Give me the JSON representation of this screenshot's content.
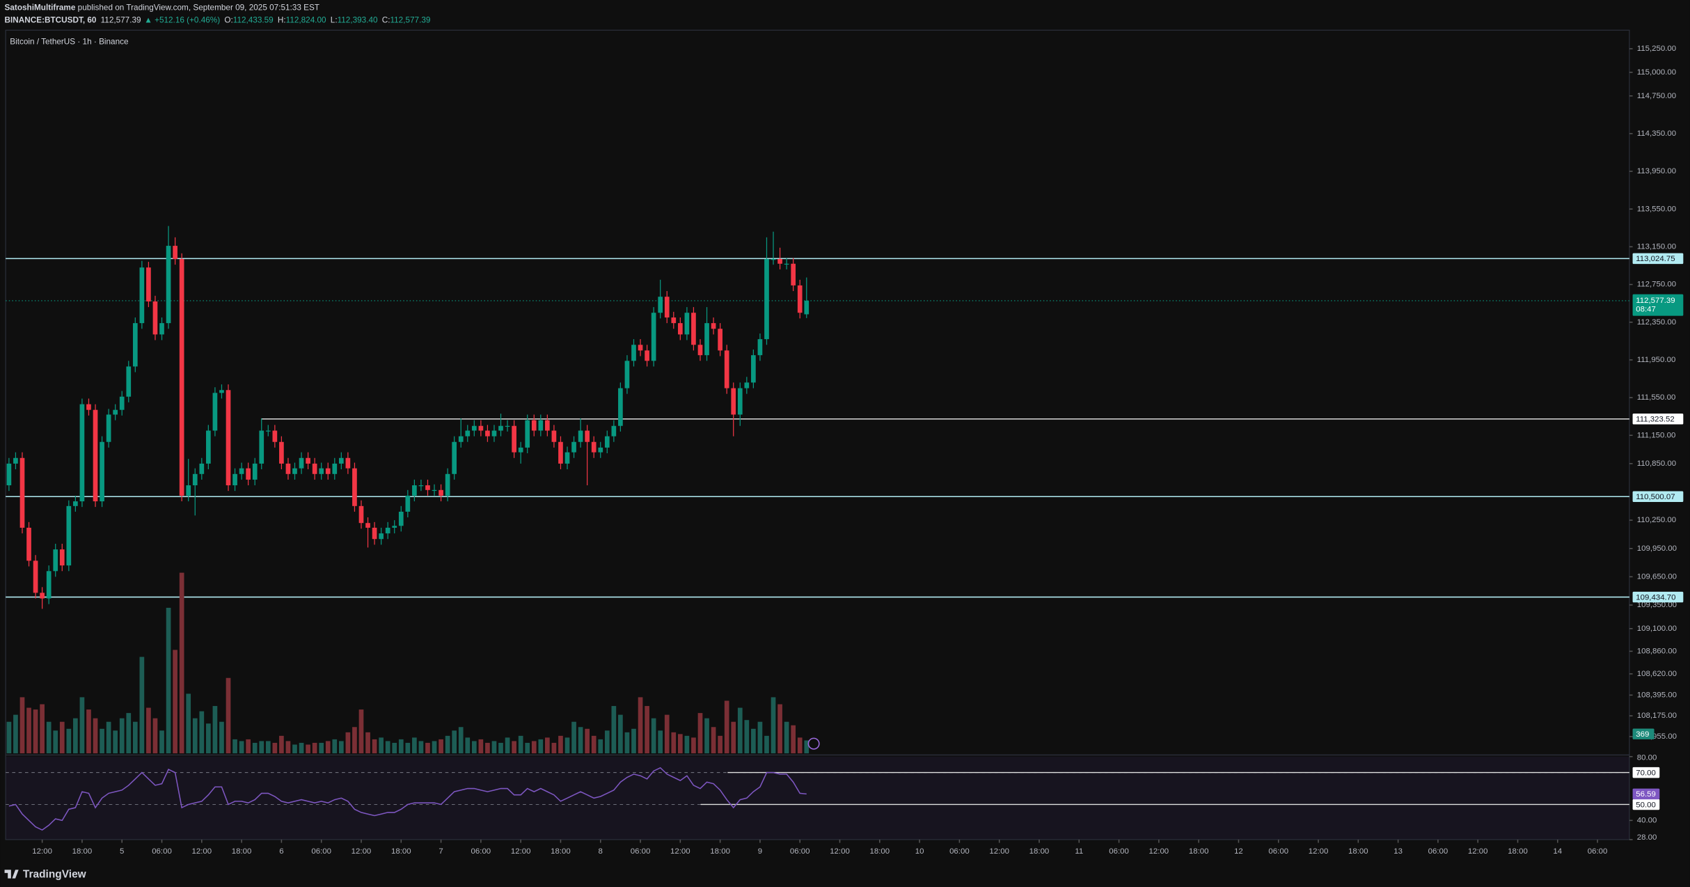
{
  "header": {
    "publisher": "SatoshiMultiframe",
    "published": " published on TradingView.com, September 09, 2025 07:51:33 EST",
    "symbol": "BINANCE:BTCUSDT, 60",
    "last": "112,577.39",
    "change": "▲ +512.16 (+0.46%)",
    "ohlc": [
      {
        "key": "O:",
        "value": "112,433.59"
      },
      {
        "key": "H:",
        "value": "112,824.00"
      },
      {
        "key": "L:",
        "value": "112,393.40"
      },
      {
        "key": "C:",
        "value": "112,577.39"
      }
    ]
  },
  "footer": "TradingView",
  "chart_data": {
    "type": "candlestick",
    "title": "Bitcoin / TetherUS · 1h · Binance",
    "colors": {
      "up": "#089981",
      "down": "#f23645",
      "up_volume": "#1d5d55",
      "down_volume": "#7b2f35"
    },
    "open": [
      110620,
      110850,
      110910,
      110170,
      109820,
      109480,
      109420,
      109710,
      109940,
      109770,
      110400,
      110450,
      111480,
      111420,
      110450,
      111080,
      111370,
      111420,
      111560,
      111880,
      112340,
      112930,
      112570,
      112220,
      112340,
      113160,
      113020,
      110510,
      110620,
      110740,
      110850,
      111200,
      111600,
      111630,
      110620,
      110740,
      110800,
      110680,
      110850,
      111200,
      111200,
      111080,
      110850,
      110740,
      110800,
      110910,
      110850,
      110740,
      110800,
      110740,
      110850,
      110910,
      110800,
      110400,
      110220,
      110170,
      110050,
      110110,
      110170,
      110190,
      110340,
      110510,
      110620,
      110620,
      110570,
      110570,
      110510,
      110740,
      111080,
      111140,
      111200,
      111250,
      111200,
      111140,
      111200,
      111250,
      111250,
      110970,
      111020,
      111310,
      111200,
      111310,
      111200,
      111080,
      110850,
      110970,
      111080,
      111200,
      111080,
      110970,
      111020,
      111140,
      111250,
      111650,
      111940,
      112110,
      112050,
      111940,
      112450,
      112620,
      112400,
      112340,
      112220,
      112450,
      112110,
      112000,
      112340,
      112280,
      112050,
      111650,
      111370,
      111650,
      111710,
      112000,
      112170,
      113020,
      113020,
      112970,
      112970,
      112740,
      112433.59
    ],
    "high": [
      110910,
      110970,
      110970,
      110230,
      109880,
      109540,
      109770,
      110000,
      110000,
      110460,
      110510,
      111540,
      111540,
      111480,
      111140,
      111430,
      111480,
      111620,
      111940,
      112400,
      113000,
      112990,
      112630,
      112400,
      113370,
      113250,
      113080,
      110900,
      110800,
      110910,
      111260,
      111660,
      111690,
      111690,
      110800,
      110860,
      110860,
      110910,
      111330,
      111260,
      111260,
      111140,
      110910,
      110860,
      110970,
      110970,
      110910,
      110860,
      110860,
      110910,
      110970,
      110970,
      110860,
      110460,
      110280,
      110230,
      110170,
      110230,
      110250,
      110400,
      110570,
      110680,
      110680,
      110680,
      110630,
      110630,
      110800,
      111140,
      111330,
      111260,
      111310,
      111310,
      111260,
      111260,
      111380,
      111310,
      111310,
      111080,
      111370,
      111370,
      111370,
      111370,
      111260,
      111140,
      111030,
      111140,
      111330,
      111260,
      111140,
      111080,
      111200,
      111310,
      111710,
      112000,
      112170,
      112170,
      112110,
      112510,
      112800,
      112680,
      112460,
      112400,
      112510,
      112510,
      112170,
      112510,
      112400,
      112340,
      112110,
      111710,
      111710,
      111770,
      112060,
      112230,
      113250,
      113310,
      113140,
      113030,
      113030,
      112800,
      112824
    ],
    "low": [
      110560,
      110790,
      110110,
      109760,
      109420,
      109310,
      109360,
      109650,
      109710,
      109710,
      110340,
      110390,
      111360,
      110390,
      110390,
      111020,
      111310,
      111360,
      111500,
      111820,
      112280,
      112510,
      112160,
      112160,
      112280,
      112960,
      110450,
      110450,
      110300,
      110680,
      110790,
      111140,
      111540,
      110560,
      110560,
      110680,
      110620,
      110620,
      110790,
      111140,
      111020,
      110790,
      110680,
      110680,
      110740,
      110790,
      110680,
      110680,
      110680,
      110680,
      110790,
      110740,
      110340,
      110160,
      109960,
      109990,
      109990,
      110050,
      110110,
      110130,
      110280,
      110450,
      110560,
      110510,
      110510,
      110450,
      110450,
      110680,
      111020,
      111080,
      111140,
      111140,
      111080,
      111080,
      111140,
      111190,
      110910,
      110850,
      110960,
      111140,
      111140,
      111140,
      111020,
      110790,
      110790,
      110910,
      111020,
      110620,
      110910,
      110910,
      110960,
      111080,
      111190,
      111590,
      111880,
      111990,
      111880,
      111880,
      112390,
      112340,
      112280,
      112160,
      112160,
      112050,
      111940,
      111940,
      112220,
      111990,
      111590,
      111140,
      111250,
      111590,
      111650,
      111940,
      112110,
      112960,
      112910,
      112910,
      112680,
      112390,
      112393.4
    ],
    "close": [
      110850,
      110910,
      110170,
      109820,
      109480,
      109420,
      109710,
      109940,
      109770,
      110400,
      110450,
      111480,
      111420,
      110450,
      111080,
      111370,
      111420,
      111560,
      111880,
      112340,
      112930,
      112570,
      112220,
      112340,
      113160,
      113020,
      110510,
      110620,
      110740,
      110850,
      111200,
      111600,
      111630,
      110620,
      110740,
      110800,
      110680,
      110850,
      111200,
      111200,
      111080,
      110850,
      110740,
      110800,
      110910,
      110850,
      110740,
      110800,
      110740,
      110850,
      110910,
      110800,
      110400,
      110220,
      110170,
      110050,
      110110,
      110170,
      110190,
      110340,
      110510,
      110620,
      110620,
      110570,
      110570,
      110510,
      110740,
      111080,
      111140,
      111200,
      111250,
      111200,
      111140,
      111200,
      111250,
      111250,
      110970,
      111020,
      111310,
      111200,
      111310,
      111200,
      111080,
      110850,
      110970,
      111080,
      111200,
      111080,
      110970,
      111020,
      111140,
      111250,
      111650,
      111940,
      112110,
      112050,
      111940,
      112450,
      112620,
      112400,
      112340,
      112220,
      112450,
      112110,
      112000,
      112340,
      112280,
      112050,
      111650,
      111370,
      111650,
      111710,
      112000,
      112170,
      113020,
      113020,
      112970,
      112970,
      112740,
      112450,
      112577.39
    ],
    "volume": [
      900,
      1100,
      1600,
      1300,
      1250,
      1400,
      900,
      650,
      900,
      700,
      1000,
      1600,
      1250,
      1000,
      700,
      900,
      650,
      1000,
      1150,
      900,
      2750,
      1300,
      1000,
      650,
      4150,
      2950,
      5150,
      1700,
      1000,
      1200,
      850,
      1350,
      900,
      2150,
      400,
      350,
      400,
      300,
      350,
      350,
      300,
      500,
      350,
      250,
      300,
      250,
      300,
      300,
      350,
      400,
      350,
      600,
      750,
      1250,
      600,
      400,
      450,
      350,
      300,
      400,
      300,
      450,
      350,
      300,
      350,
      400,
      500,
      650,
      750,
      450,
      350,
      400,
      300,
      350,
      300,
      450,
      350,
      500,
      300,
      350,
      400,
      450,
      300,
      500,
      450,
      900,
      750,
      700,
      500,
      400,
      650,
      1350,
      1100,
      600,
      700,
      1600,
      1350,
      1000,
      650,
      1100,
      600,
      550,
      500,
      450,
      1150,
      1000,
      750,
      500,
      1500,
      900,
      1300,
      950,
      700,
      900,
      500,
      1600,
      1400,
      900,
      800,
      450,
      369
    ],
    "volume_lim": [
      0,
      5500
    ],
    "ylim": [
      107777,
      115447
    ],
    "yticks": [
      {
        "value": 115250,
        "label": "115,250.00"
      },
      {
        "value": 115000,
        "label": "115,000.00"
      },
      {
        "value": 114750,
        "label": "114,750.00"
      },
      {
        "value": 114350,
        "label": "114,350.00"
      },
      {
        "value": 113950,
        "label": "113,950.00"
      },
      {
        "value": 113550,
        "label": "113,550.00"
      },
      {
        "value": 113150,
        "label": "113,150.00"
      },
      {
        "value": 112750,
        "label": "112,750.00"
      },
      {
        "value": 112350,
        "label": "112,350.00"
      },
      {
        "value": 111950,
        "label": "111,950.00"
      },
      {
        "value": 111550,
        "label": "111,550.00"
      },
      {
        "value": 111150,
        "label": "111,150.00"
      },
      {
        "value": 110850,
        "label": "110,850.00"
      },
      {
        "value": 110250,
        "label": "110,250.00"
      },
      {
        "value": 109950,
        "label": "109,950.00"
      },
      {
        "value": 109650,
        "label": "109,650.00"
      },
      {
        "value": 109350,
        "label": "109,350.00"
      },
      {
        "value": 109100,
        "label": "109,100.00"
      },
      {
        "value": 108860,
        "label": "108,860.00"
      },
      {
        "value": 108620,
        "label": "108,620.00"
      },
      {
        "value": 108395,
        "label": "108,395.00"
      },
      {
        "value": 108175,
        "label": "108,175.00"
      },
      {
        "value": 107955,
        "label": "107,955.00"
      }
    ],
    "xlim": [
      -0.5,
      243.8
    ],
    "xticks": [
      {
        "value": 5,
        "label": "12:00"
      },
      {
        "value": 11,
        "label": "18:00"
      },
      {
        "value": 17,
        "label": "5"
      },
      {
        "value": 23,
        "label": "06:00"
      },
      {
        "value": 29,
        "label": "12:00"
      },
      {
        "value": 35,
        "label": "18:00"
      },
      {
        "value": 41,
        "label": "6"
      },
      {
        "value": 47,
        "label": "06:00"
      },
      {
        "value": 53,
        "label": "12:00"
      },
      {
        "value": 59,
        "label": "18:00"
      },
      {
        "value": 65,
        "label": "7"
      },
      {
        "value": 71,
        "label": "06:00"
      },
      {
        "value": 77,
        "label": "12:00"
      },
      {
        "value": 83,
        "label": "18:00"
      },
      {
        "value": 89,
        "label": "8"
      },
      {
        "value": 95,
        "label": "06:00"
      },
      {
        "value": 101,
        "label": "12:00"
      },
      {
        "value": 107,
        "label": "18:00"
      },
      {
        "value": 113,
        "label": "9"
      },
      {
        "value": 119,
        "label": "06:00"
      },
      {
        "value": 125,
        "label": "12:00"
      },
      {
        "value": 131,
        "label": "18:00"
      },
      {
        "value": 137,
        "label": "10"
      },
      {
        "value": 143,
        "label": "06:00"
      },
      {
        "value": 149,
        "label": "12:00"
      },
      {
        "value": 155,
        "label": "18:00"
      },
      {
        "value": 161,
        "label": "11"
      },
      {
        "value": 167,
        "label": "06:00"
      },
      {
        "value": 173,
        "label": "12:00"
      },
      {
        "value": 179,
        "label": "18:00"
      },
      {
        "value": 185,
        "label": "12"
      },
      {
        "value": 191,
        "label": "06:00"
      },
      {
        "value": 197,
        "label": "12:00"
      },
      {
        "value": 203,
        "label": "18:00"
      },
      {
        "value": 209,
        "label": "13"
      },
      {
        "value": 215,
        "label": "06:00"
      },
      {
        "value": 221,
        "label": "12:00"
      },
      {
        "value": 227,
        "label": "18:00"
      },
      {
        "value": 233,
        "label": "14"
      },
      {
        "value": 239,
        "label": "06:00"
      }
    ],
    "levels": [
      {
        "value": 113024.75,
        "label": "113,024.75"
      },
      {
        "value": 111323.52,
        "label": "111,323.52"
      },
      {
        "value": 110500.07,
        "label": "110,500.07"
      },
      {
        "value": 109434.7,
        "label": "109,434.70"
      }
    ],
    "last_price": {
      "value": 112577.39,
      "label": "112,577.39",
      "countdown": "08:47"
    },
    "rsi": {
      "color": "#7e57c2",
      "ylim": [
        28,
        80
      ],
      "yticks": [
        {
          "value": 80,
          "label": "80.00"
        },
        {
          "value": 40,
          "label": "40.00"
        },
        {
          "value": 28,
          "label": "28.00"
        }
      ],
      "levels": [
        {
          "value": 70,
          "label": "70.00"
        },
        {
          "value": 50,
          "label": "50.00"
        }
      ],
      "values": [
        49,
        50,
        44,
        40,
        36,
        34,
        37,
        41,
        40,
        47,
        48,
        58,
        57,
        48,
        54,
        57,
        58,
        59,
        62,
        66,
        70,
        66,
        62,
        63,
        72,
        70,
        48,
        50,
        51,
        52,
        56,
        61,
        61,
        50,
        52,
        52,
        51,
        53,
        57,
        57,
        55,
        52,
        51,
        52,
        53,
        52,
        51,
        52,
        51,
        53,
        54,
        52,
        47,
        45,
        44,
        43,
        44,
        45,
        45,
        47,
        50,
        51,
        51,
        51,
        51,
        50,
        54,
        58,
        59,
        60,
        60,
        59,
        58,
        59,
        60,
        60,
        56,
        56,
        60,
        58,
        60,
        58,
        56,
        52,
        54,
        56,
        58,
        56,
        54,
        55,
        57,
        59,
        64,
        67,
        69,
        68,
        66,
        71,
        73,
        69,
        67,
        65,
        68,
        62,
        60,
        64,
        63,
        59,
        53,
        48,
        53,
        54,
        58,
        61,
        70,
        70,
        69,
        69,
        64,
        57,
        56.59
      ]
    }
  }
}
